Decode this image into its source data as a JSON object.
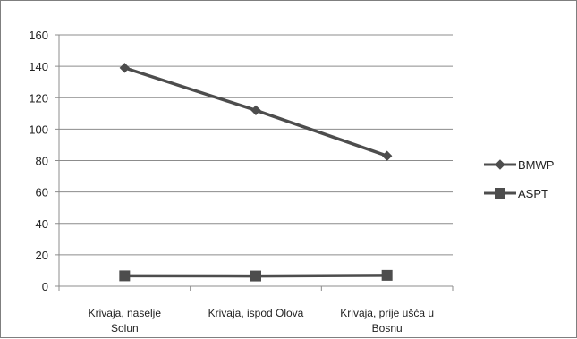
{
  "chart_data": {
    "type": "line",
    "title": "",
    "xlabel": "",
    "ylabel": "",
    "categories": [
      [
        "Krivaja, naselje",
        "Solun"
      ],
      [
        "Krivaja, ispod Olova"
      ],
      [
        "Krivaja, prije ušća u",
        "Bosnu"
      ]
    ],
    "ylim": [
      0,
      160
    ],
    "yticks": [
      0,
      20,
      40,
      60,
      80,
      100,
      120,
      140,
      160
    ],
    "grid": "horizontal",
    "legend_position": "right",
    "series": [
      {
        "name": "BMWP",
        "values": [
          139,
          112,
          83
        ],
        "marker": "diamond",
        "color": "#4d4d4d"
      },
      {
        "name": "ASPT",
        "values": [
          6.6,
          6.5,
          6.9
        ],
        "marker": "square",
        "color": "#4d4d4d"
      }
    ]
  }
}
